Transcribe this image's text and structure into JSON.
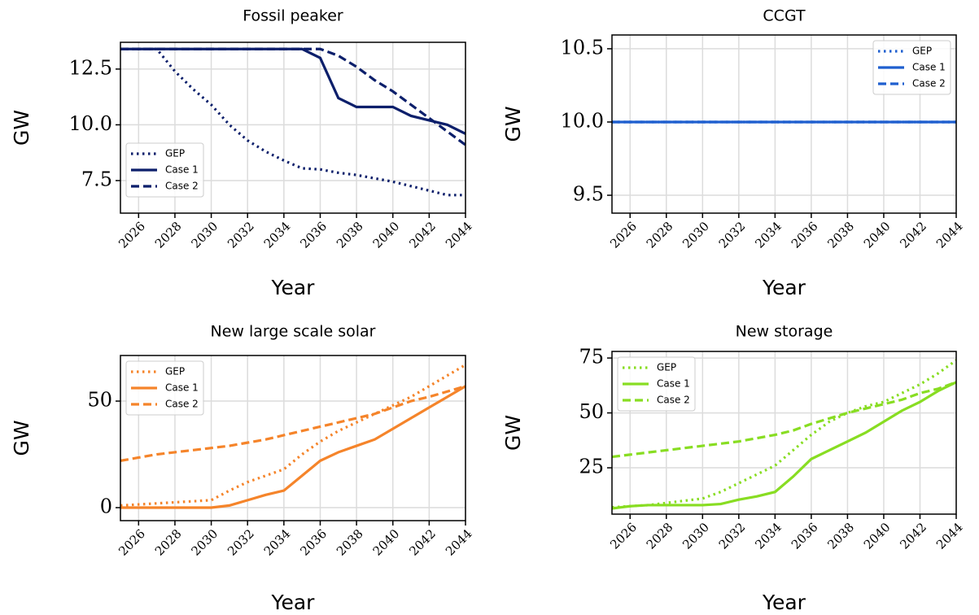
{
  "chart_data": [
    {
      "type": "line",
      "title": "Fossil peaker",
      "x_label": "Year",
      "y_label": "GW",
      "x": [
        2025,
        2026,
        2027,
        2028,
        2029,
        2030,
        2031,
        2032,
        2033,
        2034,
        2035,
        2036,
        2037,
        2038,
        2039,
        2040,
        2041,
        2042,
        2043,
        2044
      ],
      "xlim": [
        2025,
        2044
      ],
      "xticks": [
        2026,
        2028,
        2030,
        2032,
        2034,
        2036,
        2038,
        2040,
        2042,
        2044
      ],
      "ylim": [
        6.04,
        13.7
      ],
      "yticks": [
        7.5,
        {
          "value": 10,
          "label": "10.0"
        },
        12.5
      ],
      "grid": true,
      "legend": "lower left",
      "series": [
        {
          "name": "GEP",
          "color": "#0c1f6b",
          "style": "dotted",
          "values": [
            13.4,
            13.4,
            13.4,
            12.4,
            11.6,
            10.9,
            10.0,
            9.3,
            8.8,
            8.4,
            8.05,
            8.0,
            7.85,
            7.75,
            7.6,
            7.45,
            7.25,
            7.05,
            6.85,
            6.85
          ]
        },
        {
          "name": "Case 1",
          "color": "#0c1f6b",
          "style": "solid",
          "values": [
            13.4,
            13.4,
            13.4,
            13.4,
            13.4,
            13.4,
            13.4,
            13.4,
            13.4,
            13.4,
            13.4,
            13.0,
            11.2,
            10.8,
            10.8,
            10.8,
            10.4,
            10.2,
            10.0,
            9.6
          ]
        },
        {
          "name": "Case 2",
          "color": "#0c1f6b",
          "style": "dashed",
          "values": [
            13.4,
            13.4,
            13.4,
            13.4,
            13.4,
            13.4,
            13.4,
            13.4,
            13.4,
            13.4,
            13.4,
            13.4,
            13.1,
            12.6,
            12.0,
            11.5,
            10.9,
            10.3,
            9.7,
            9.1
          ]
        }
      ]
    },
    {
      "type": "line",
      "title": "CCGT",
      "x_label": "Year",
      "y_label": "GW",
      "x": [
        2025,
        2026,
        2027,
        2028,
        2029,
        2030,
        2031,
        2032,
        2033,
        2034,
        2035,
        2036,
        2037,
        2038,
        2039,
        2040,
        2041,
        2042,
        2043,
        2044
      ],
      "xlim": [
        2025,
        2044
      ],
      "xticks": [
        2026,
        2028,
        2030,
        2032,
        2034,
        2036,
        2038,
        2040,
        2042,
        2044
      ],
      "ylim": [
        9.378,
        10.594
      ],
      "yticks": [
        9.5,
        {
          "value": 10,
          "label": "10.0"
        },
        10.5
      ],
      "grid": true,
      "legend": "upper right",
      "series": [
        {
          "name": "GEP",
          "color": "#1f5fcf",
          "style": "dotted",
          "values": [
            10,
            10,
            10,
            10,
            10,
            10,
            10,
            10,
            10,
            10,
            10,
            10,
            10,
            10,
            10,
            10,
            10,
            10,
            10,
            10
          ]
        },
        {
          "name": "Case 1",
          "color": "#1f5fcf",
          "style": "solid",
          "values": [
            10,
            10,
            10,
            10,
            10,
            10,
            10,
            10,
            10,
            10,
            10,
            10,
            10,
            10,
            10,
            10,
            10,
            10,
            10,
            10
          ]
        },
        {
          "name": "Case 2",
          "color": "#1f5fcf",
          "style": "dashed",
          "values": [
            10,
            10,
            10,
            10,
            10,
            10,
            10,
            10,
            10,
            10,
            10,
            10,
            10,
            10,
            10,
            10,
            10,
            10,
            10,
            10
          ]
        }
      ]
    },
    {
      "type": "line",
      "title": "New large scale solar",
      "x_label": "Year",
      "y_label": "GW",
      "x": [
        2025,
        2026,
        2027,
        2028,
        2029,
        2030,
        2031,
        2032,
        2033,
        2034,
        2035,
        2036,
        2037,
        2038,
        2039,
        2040,
        2041,
        2042,
        2043,
        2044
      ],
      "xlim": [
        2025,
        2044
      ],
      "xticks": [
        2026,
        2028,
        2030,
        2032,
        2034,
        2036,
        2038,
        2040,
        2042,
        2044
      ],
      "ylim": [
        -6.1,
        71.4
      ],
      "yticks": [
        0,
        50
      ],
      "grid": true,
      "legend": "upper left",
      "series": [
        {
          "name": "GEP",
          "color": "#f5842a",
          "style": "dotted",
          "values": [
            1,
            1.5,
            2,
            2.5,
            3,
            3.5,
            8,
            12,
            15,
            18,
            25,
            31,
            36,
            40,
            44,
            48,
            52,
            57,
            62,
            67
          ]
        },
        {
          "name": "Case 1",
          "color": "#f5842a",
          "style": "solid",
          "values": [
            0,
            0,
            0,
            0,
            0,
            0,
            1,
            3.5,
            6,
            8,
            15,
            22,
            26,
            29,
            32,
            37,
            42,
            47,
            52,
            57
          ]
        },
        {
          "name": "Case 2",
          "color": "#f5842a",
          "style": "dashed",
          "values": [
            22,
            23.5,
            25,
            26,
            27,
            28,
            29,
            30.5,
            32,
            34,
            36,
            38,
            40,
            42,
            44,
            47,
            50,
            52,
            54.5,
            57
          ]
        }
      ]
    },
    {
      "type": "line",
      "title": "New storage",
      "x_label": "Year",
      "y_label": "GW",
      "x": [
        2025,
        2026,
        2027,
        2028,
        2029,
        2030,
        2031,
        2032,
        2033,
        2034,
        2035,
        2036,
        2037,
        2038,
        2039,
        2040,
        2041,
        2042,
        2043,
        2044
      ],
      "xlim": [
        2025,
        2044
      ],
      "xticks": [
        2026,
        2028,
        2030,
        2032,
        2034,
        2036,
        2038,
        2040,
        2042,
        2044
      ],
      "ylim": [
        3.9,
        78
      ],
      "yticks": [
        25,
        50,
        75
      ],
      "grid": true,
      "legend": "upper left",
      "series": [
        {
          "name": "GEP",
          "color": "#88dd22",
          "style": "dotted",
          "values": [
            7,
            7.5,
            8,
            9,
            10,
            11,
            14,
            18,
            22,
            26,
            33,
            40,
            46,
            50,
            53,
            55,
            59,
            63,
            68,
            74
          ]
        },
        {
          "name": "Case 1",
          "color": "#88dd22",
          "style": "solid",
          "values": [
            6.5,
            7.5,
            8,
            8,
            8,
            8,
            8.5,
            10.5,
            12,
            14,
            21,
            29,
            33,
            37,
            41,
            46,
            51,
            55,
            60,
            64
          ]
        },
        {
          "name": "Case 2",
          "color": "#88dd22",
          "style": "dashed",
          "values": [
            30,
            31,
            32,
            33,
            34,
            35,
            36,
            37,
            38.5,
            40,
            42,
            45,
            47.5,
            50,
            52,
            54,
            56,
            59,
            61,
            64
          ]
        }
      ]
    }
  ]
}
